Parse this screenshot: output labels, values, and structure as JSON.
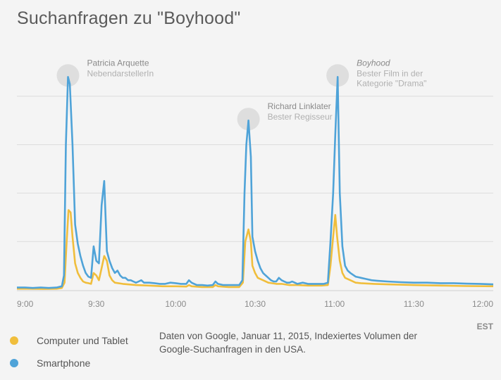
{
  "title": "Suchanfragen zu \"Boyhood\"",
  "legend": [
    {
      "label": "Computer und Tablet",
      "color": "#f0be3c"
    },
    {
      "label": "Smartphone",
      "color": "#4fa3d8"
    }
  ],
  "source_note": "Daten von Google, Januar 11, 2015, Indexiertes Volumen der Google-Suchanfragen in den USA.",
  "chart_data": {
    "type": "line",
    "xlabel": "",
    "ylabel": "",
    "x_unit": "EST",
    "x_ticks": [
      {
        "v": 0,
        "label": "9:00"
      },
      {
        "v": 30,
        "label": "9:30"
      },
      {
        "v": 60,
        "label": "10:00"
      },
      {
        "v": 90,
        "label": "10:30"
      },
      {
        "v": 120,
        "label": "11:00"
      },
      {
        "v": 150,
        "label": "11:30"
      },
      {
        "v": 180,
        "label": "12:00"
      }
    ],
    "xlim": [
      0,
      180
    ],
    "ylim": [
      0,
      100
    ],
    "y_grid": [
      20,
      40,
      60,
      80
    ],
    "y_tick_labels": false,
    "series": [
      {
        "name": "Smartphone",
        "color": "#4fa3d8",
        "points": [
          [
            0,
            1
          ],
          [
            3,
            1
          ],
          [
            6,
            0.8
          ],
          [
            9,
            1
          ],
          [
            12,
            0.8
          ],
          [
            15,
            1
          ],
          [
            17,
            1.5
          ],
          [
            17.8,
            6
          ],
          [
            18.5,
            60
          ],
          [
            19.3,
            88
          ],
          [
            20,
            85
          ],
          [
            21,
            60
          ],
          [
            22,
            27
          ],
          [
            23,
            19
          ],
          [
            24,
            14
          ],
          [
            25,
            10
          ],
          [
            26,
            7
          ],
          [
            27,
            5.5
          ],
          [
            28,
            5
          ],
          [
            29,
            18
          ],
          [
            30,
            12
          ],
          [
            31,
            11
          ],
          [
            32,
            35
          ],
          [
            33,
            45
          ],
          [
            34,
            16
          ],
          [
            35,
            12
          ],
          [
            36,
            9
          ],
          [
            37,
            7
          ],
          [
            38,
            8
          ],
          [
            39,
            6
          ],
          [
            40,
            5
          ],
          [
            41,
            5
          ],
          [
            42,
            4
          ],
          [
            43,
            4
          ],
          [
            44,
            3.5
          ],
          [
            45,
            3
          ],
          [
            46,
            3.5
          ],
          [
            47,
            4
          ],
          [
            48,
            3
          ],
          [
            50,
            3
          ],
          [
            52,
            2.8
          ],
          [
            54,
            2.5
          ],
          [
            56,
            2.5
          ],
          [
            58,
            3
          ],
          [
            60,
            2.8
          ],
          [
            62,
            2.5
          ],
          [
            64,
            2.5
          ],
          [
            65,
            4
          ],
          [
            66,
            3
          ],
          [
            67,
            2.5
          ],
          [
            68,
            2
          ],
          [
            70,
            2
          ],
          [
            72,
            1.8
          ],
          [
            74,
            2
          ],
          [
            75,
            3.5
          ],
          [
            76,
            2.5
          ],
          [
            78,
            2
          ],
          [
            80,
            2
          ],
          [
            82,
            2
          ],
          [
            84,
            2
          ],
          [
            85.2,
            4
          ],
          [
            86,
            40
          ],
          [
            86.7,
            60
          ],
          [
            87.5,
            70
          ],
          [
            88.4,
            55
          ],
          [
            89,
            22
          ],
          [
            90,
            16
          ],
          [
            91,
            12
          ],
          [
            92,
            9
          ],
          [
            93,
            7
          ],
          [
            94,
            6
          ],
          [
            95,
            5
          ],
          [
            96,
            4
          ],
          [
            97,
            3.5
          ],
          [
            98,
            3.5
          ],
          [
            99,
            5
          ],
          [
            100,
            4
          ],
          [
            101,
            3.5
          ],
          [
            102,
            3
          ],
          [
            103,
            3
          ],
          [
            104,
            3.5
          ],
          [
            105,
            3
          ],
          [
            106,
            2.5
          ],
          [
            108,
            3
          ],
          [
            110,
            2.5
          ],
          [
            112,
            2.5
          ],
          [
            114,
            2.5
          ],
          [
            116,
            2.5
          ],
          [
            117.5,
            3
          ],
          [
            118.5,
            20
          ],
          [
            119.5,
            40
          ],
          [
            120.3,
            64
          ],
          [
            121.2,
            88
          ],
          [
            122,
            40
          ],
          [
            123,
            18
          ],
          [
            124,
            10
          ],
          [
            125,
            8
          ],
          [
            126,
            7
          ],
          [
            128,
            5.5
          ],
          [
            130,
            5
          ],
          [
            132,
            4.5
          ],
          [
            134,
            4
          ],
          [
            136,
            3.8
          ],
          [
            140,
            3.5
          ],
          [
            145,
            3.2
          ],
          [
            150,
            3
          ],
          [
            155,
            3
          ],
          [
            160,
            2.8
          ],
          [
            165,
            2.8
          ],
          [
            170,
            2.6
          ],
          [
            175,
            2.5
          ],
          [
            180,
            2.3
          ]
        ]
      },
      {
        "name": "Computer und Tablet",
        "color": "#f0be3c",
        "points": [
          [
            0,
            0.5
          ],
          [
            5,
            0.5
          ],
          [
            10,
            0.4
          ],
          [
            15,
            0.5
          ],
          [
            17,
            0.8
          ],
          [
            18,
            3
          ],
          [
            18.8,
            20
          ],
          [
            19.5,
            33
          ],
          [
            20.3,
            32
          ],
          [
            21,
            22
          ],
          [
            22,
            11
          ],
          [
            23,
            7
          ],
          [
            24,
            5
          ],
          [
            25,
            3.5
          ],
          [
            26,
            3
          ],
          [
            27,
            2.8
          ],
          [
            28,
            2.5
          ],
          [
            29,
            7
          ],
          [
            30,
            6
          ],
          [
            31,
            4
          ],
          [
            32,
            9
          ],
          [
            33,
            14
          ],
          [
            34,
            12
          ],
          [
            35,
            6
          ],
          [
            36,
            4
          ],
          [
            37,
            3
          ],
          [
            40,
            2.5
          ],
          [
            45,
            2
          ],
          [
            50,
            1.8
          ],
          [
            55,
            1.5
          ],
          [
            60,
            1.5
          ],
          [
            64,
            1.4
          ],
          [
            65,
            2
          ],
          [
            66,
            1.5
          ],
          [
            70,
            1.2
          ],
          [
            74,
            1.2
          ],
          [
            75,
            2
          ],
          [
            76,
            1.5
          ],
          [
            80,
            1.2
          ],
          [
            84,
            1.2
          ],
          [
            85.4,
            3
          ],
          [
            86.3,
            20
          ],
          [
            87.5,
            25
          ],
          [
            88.4,
            20
          ],
          [
            89,
            10
          ],
          [
            90,
            7
          ],
          [
            91,
            5
          ],
          [
            93,
            4
          ],
          [
            95,
            3
          ],
          [
            98,
            2.5
          ],
          [
            100,
            2.5
          ],
          [
            103,
            2
          ],
          [
            106,
            2
          ],
          [
            110,
            1.8
          ],
          [
            115,
            1.8
          ],
          [
            117.5,
            2
          ],
          [
            118.5,
            10
          ],
          [
            119.5,
            22
          ],
          [
            120.3,
            31
          ],
          [
            121,
            22
          ],
          [
            122,
            12
          ],
          [
            123,
            7
          ],
          [
            124,
            5
          ],
          [
            126,
            4
          ],
          [
            128,
            3
          ],
          [
            130,
            2.8
          ],
          [
            135,
            2.5
          ],
          [
            140,
            2.3
          ],
          [
            150,
            2
          ],
          [
            160,
            1.8
          ],
          [
            170,
            1.6
          ],
          [
            180,
            1.5
          ]
        ]
      }
    ],
    "annotations": [
      {
        "x": 19.3,
        "y": 88,
        "title": "Patricia Arquette",
        "subtitle": "NebendarstellerIn",
        "italic": false
      },
      {
        "x": 87.5,
        "y": 70,
        "title": "Richard Linklater",
        "subtitle": "Bester Regisseur",
        "italic": false
      },
      {
        "x": 121.2,
        "y": 88,
        "title": "Boyhood",
        "subtitle": "Bester Film in der Kategorie \"Drama\"",
        "italic": true
      }
    ]
  }
}
